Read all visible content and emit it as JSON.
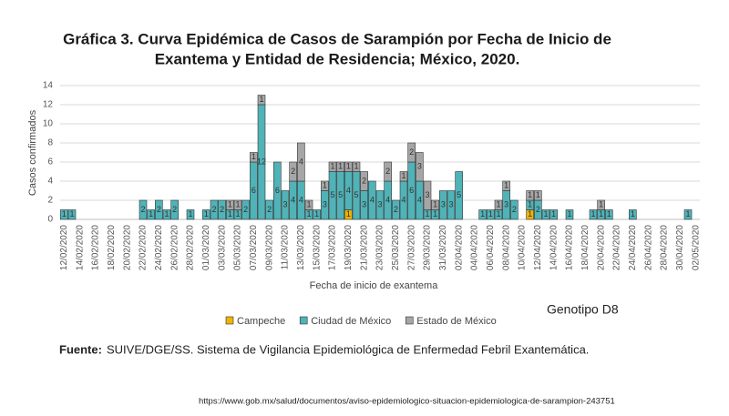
{
  "chart_data": {
    "type": "stacked_bar",
    "title": [
      "Gráfica 3. Curva Epidémica de Casos de Sarampión por Fecha de Inicio de",
      "Exantema y Entidad de Residencia; México, 2020."
    ],
    "x_label": "Fecha de inicio de exantema",
    "y_label": "Casos confirmados",
    "annotation": "Genotipo D8",
    "categories": [
      "12/02/2020",
      null,
      "14/02/2020",
      null,
      "16/02/2020",
      null,
      "18/02/2020",
      null,
      "20/02/2020",
      null,
      "22/02/2020",
      null,
      "24/02/2020",
      null,
      "26/02/2020",
      null,
      "28/02/2020",
      null,
      "01/03/2020",
      null,
      "03/03/2020",
      null,
      "05/03/2020",
      null,
      "07/03/2020",
      null,
      "09/03/2020",
      null,
      "11/03/2020",
      null,
      "13/03/2020",
      null,
      "15/03/2020",
      null,
      "17/03/2020",
      null,
      "19/03/2020",
      null,
      "21/03/2020",
      null,
      "23/03/2020",
      null,
      "25/03/2020",
      null,
      "27/03/2020",
      null,
      "29/03/2020",
      null,
      "31/03/2020",
      null,
      "02/04/2020",
      null,
      "04/04/2020",
      null,
      "06/04/2020",
      null,
      "08/04/2020",
      null,
      "10/04/2020",
      null,
      "12/04/2020",
      null,
      "14/04/2020",
      null,
      "16/04/2020",
      null,
      "18/04/2020",
      null,
      "20/04/2020",
      null,
      "22/04/2020",
      null,
      "24/04/2020",
      null,
      "26/04/2020",
      null,
      "28/04/2020",
      null,
      "30/04/2020",
      null,
      "02/05/2020"
    ],
    "series": [
      {
        "name": "Campeche",
        "color": "#f0b400",
        "values": [
          0,
          0,
          0,
          0,
          0,
          0,
          0,
          0,
          0,
          0,
          0,
          0,
          0,
          0,
          0,
          0,
          0,
          0,
          0,
          0,
          0,
          0,
          0,
          0,
          0,
          0,
          0,
          0,
          0,
          0,
          0,
          0,
          0,
          0,
          0,
          0,
          1,
          0,
          0,
          0,
          0,
          0,
          0,
          0,
          0,
          0,
          0,
          0,
          0,
          0,
          0,
          0,
          0,
          0,
          0,
          0,
          0,
          0,
          0,
          1,
          0,
          0,
          0,
          0,
          0,
          0,
          0,
          0,
          0,
          0,
          0,
          0,
          0,
          0,
          0,
          0,
          0,
          0,
          0,
          0,
          0
        ]
      },
      {
        "name": "Ciudad de México",
        "color": "#4fb3b8",
        "values": [
          1,
          1,
          0,
          0,
          0,
          0,
          0,
          0,
          0,
          0,
          2,
          1,
          2,
          1,
          2,
          0,
          1,
          0,
          1,
          2,
          2,
          1,
          1,
          2,
          6,
          12,
          2,
          6,
          3,
          4,
          4,
          1,
          1,
          3,
          5,
          5,
          4,
          5,
          3,
          4,
          3,
          4,
          2,
          4,
          6,
          4,
          1,
          1,
          3,
          3,
          5,
          0,
          0,
          1,
          1,
          1,
          3,
          2,
          0,
          1,
          2,
          1,
          1,
          0,
          1,
          0,
          0,
          1,
          1,
          1,
          0,
          0,
          1,
          0,
          0,
          0,
          0,
          0,
          0,
          1,
          0
        ]
      },
      {
        "name": "Estado de México",
        "color": "#a6a6a6",
        "values": [
          0,
          0,
          0,
          0,
          0,
          0,
          0,
          0,
          0,
          0,
          0,
          0,
          0,
          0,
          0,
          0,
          0,
          0,
          0,
          0,
          0,
          1,
          1,
          0,
          1,
          1,
          0,
          0,
          0,
          2,
          4,
          1,
          0,
          1,
          1,
          1,
          1,
          1,
          2,
          0,
          0,
          2,
          0,
          1,
          2,
          3,
          3,
          1,
          0,
          0,
          0,
          0,
          0,
          0,
          0,
          1,
          1,
          0,
          0,
          1,
          1,
          0,
          0,
          0,
          0,
          0,
          0,
          0,
          1,
          0,
          0,
          0,
          0,
          0,
          0,
          0,
          0,
          0,
          0,
          0,
          0
        ]
      }
    ],
    "ylim": [
      0,
      14
    ],
    "yticks": [
      0,
      2,
      4,
      6,
      8,
      10,
      12,
      14
    ],
    "grid": true,
    "legend": "bottom"
  },
  "source": {
    "label": "Fuente:",
    "text": "SUIVE/DGE/SS. Sistema de Vigilancia Epidemiológica de Enfermedad Febril Exantemática."
  },
  "url": "https://www.gob.mx/salud/documentos/aviso-epidemiologico-situacion-epidemiologica-de-sarampion-243751"
}
